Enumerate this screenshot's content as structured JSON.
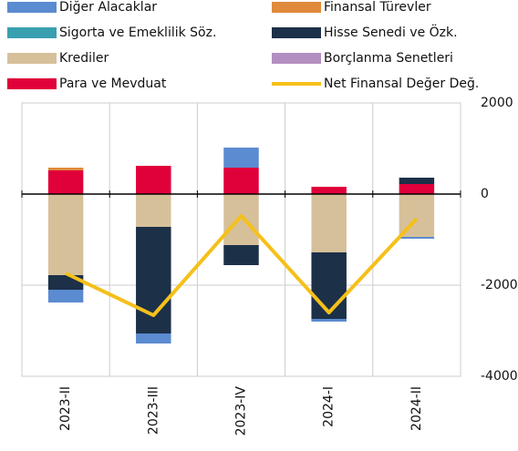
{
  "chart_data": {
    "type": "bar",
    "stacked": true,
    "categories": [
      "2023-II",
      "2023-III",
      "2023-IV",
      "2024-I",
      "2024-II"
    ],
    "series": [
      {
        "name": "Diğer Alacaklar",
        "color": "#5b8bd0",
        "values": [
          -280,
          -220,
          440,
          -60,
          -40
        ]
      },
      {
        "name": "Finansal Türevler",
        "color": "#e08a3c",
        "values": [
          60,
          0,
          0,
          0,
          0
        ]
      },
      {
        "name": "Sigorta ve Emeklilik Söz.",
        "color": "#3aa0b0",
        "values": [
          0,
          0,
          0,
          0,
          0
        ]
      },
      {
        "name": "Hisse Senedi ve Özk.",
        "color": "#1c3048",
        "values": [
          -320,
          -2340,
          -440,
          -1460,
          140
        ]
      },
      {
        "name": "Krediler",
        "color": "#d6c09a",
        "values": [
          -1780,
          -720,
          -1120,
          -1280,
          -940
        ]
      },
      {
        "name": "Borçlanma Senetleri",
        "color": "#b28fc0",
        "values": [
          0,
          0,
          0,
          0,
          0
        ]
      },
      {
        "name": "Para ve Mevduat",
        "color": "#e0003a",
        "values": [
          520,
          620,
          580,
          160,
          220
        ]
      },
      {
        "name": "Net Finansal Değer Değ.",
        "color": "#f5c01a",
        "type": "line",
        "values": [
          -1740,
          -2660,
          -480,
          -2600,
          -540
        ]
      }
    ],
    "ylim": [
      -4000,
      2000
    ],
    "yticks": [
      2000,
      0,
      -2000,
      -4000
    ],
    "grid": true
  }
}
